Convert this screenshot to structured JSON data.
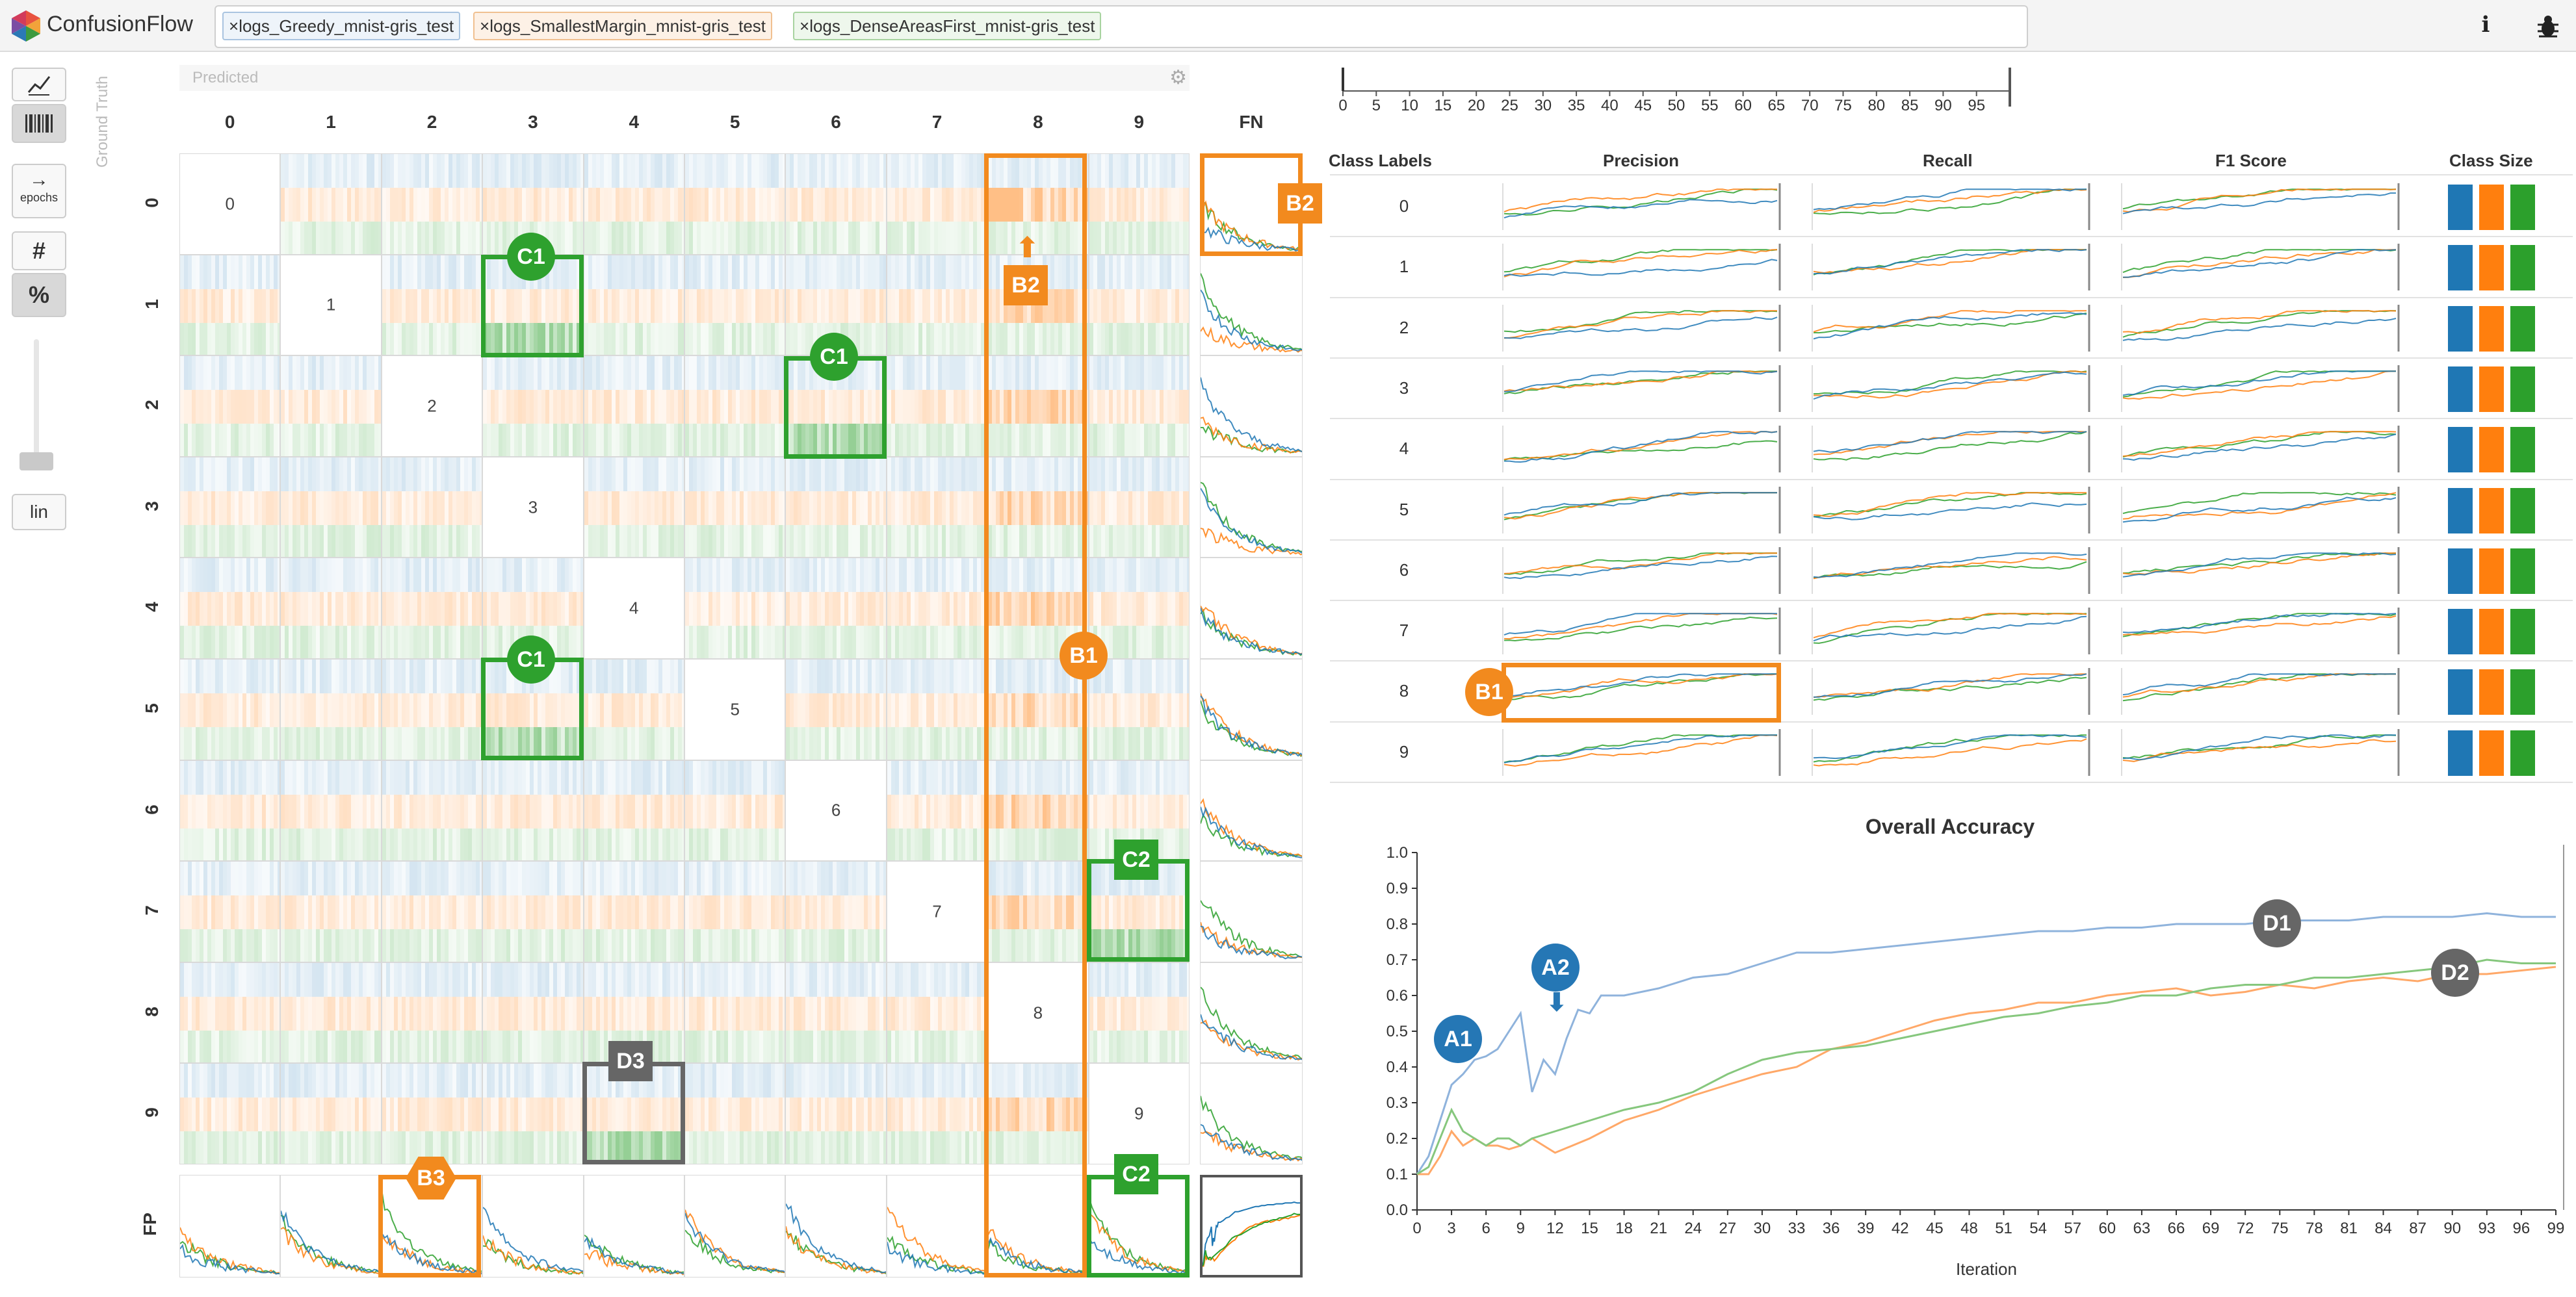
{
  "app": {
    "title": "ConfusionFlow"
  },
  "runs": [
    {
      "label": "logs_Greedy_mnist-gris_test",
      "color": "#1f77b4",
      "bg": "#dde9f5"
    },
    {
      "label": "logs_SmallestMargin_mnist-gris_test",
      "color": "#ff7f0e",
      "bg": "#fbe6d2"
    },
    {
      "label": "logs_DenseAreasFirst_mnist-gris_test",
      "color": "#2ca02c",
      "bg": "#dff0dc"
    }
  ],
  "remove_glyph": "×",
  "header_icons": [
    "info-icon",
    "bug-icon"
  ],
  "toolbar": {
    "view_line_icon": "line-chart-icon",
    "view_bar_icon": "barcode-icon",
    "epochs_label": "epochs",
    "count_label": "#",
    "percent_label": "%",
    "scale_label": "lin"
  },
  "matrix": {
    "predicted_label": "Predicted",
    "ground_truth_label": "Ground Truth",
    "fn_label": "FN",
    "fp_label": "FP",
    "classes": [
      "0",
      "1",
      "2",
      "3",
      "4",
      "5",
      "6",
      "7",
      "8",
      "9"
    ]
  },
  "timeline": {
    "ticks": [
      "0",
      "5",
      "10",
      "15",
      "20",
      "25",
      "30",
      "35",
      "40",
      "45",
      "50",
      "55",
      "60",
      "65",
      "70",
      "75",
      "80",
      "85",
      "90",
      "95"
    ]
  },
  "metrics_table": {
    "headers": {
      "class_labels": "Class Labels",
      "precision": "Precision",
      "recall": "Recall",
      "f1": "F1 Score",
      "class_size": "Class Size"
    },
    "rows": [
      "0",
      "1",
      "2",
      "3",
      "4",
      "5",
      "6",
      "7",
      "8",
      "9"
    ]
  },
  "accuracy_chart": {
    "title": "Overall Accuracy",
    "xlabel": "Iteration",
    "yticks": [
      "0.0",
      "0.1",
      "0.2",
      "0.3",
      "0.4",
      "0.5",
      "0.6",
      "0.7",
      "0.8",
      "0.9",
      "1.0"
    ],
    "xticks": [
      "0",
      "3",
      "6",
      "9",
      "12",
      "15",
      "18",
      "21",
      "24",
      "27",
      "30",
      "33",
      "36",
      "39",
      "42",
      "45",
      "48",
      "51",
      "54",
      "57",
      "60",
      "63",
      "66",
      "69",
      "72",
      "75",
      "78",
      "81",
      "84",
      "87",
      "90",
      "93",
      "96",
      "99"
    ]
  },
  "chart_data": {
    "type": "line",
    "title": "Overall Accuracy",
    "xlabel": "Iteration",
    "ylabel": "",
    "ylim": [
      0,
      1
    ],
    "xlim": [
      0,
      99
    ],
    "series": [
      {
        "x": [
          0,
          1,
          2,
          3,
          4,
          5,
          6,
          7,
          8,
          9,
          10,
          11,
          12,
          13,
          14,
          15,
          16,
          18,
          21,
          24,
          27,
          30,
          33,
          36,
          39,
          42,
          45,
          48,
          51,
          54,
          57,
          60,
          63,
          66,
          69,
          72,
          75,
          78,
          81,
          84,
          87,
          90,
          93,
          96,
          99
        ],
        "y": [
          0.1,
          0.15,
          0.25,
          0.35,
          0.38,
          0.42,
          0.43,
          0.45,
          0.5,
          0.55,
          0.33,
          0.42,
          0.38,
          0.48,
          0.56,
          0.55,
          0.6,
          0.6,
          0.62,
          0.65,
          0.66,
          0.69,
          0.72,
          0.72,
          0.73,
          0.74,
          0.75,
          0.76,
          0.77,
          0.78,
          0.78,
          0.79,
          0.79,
          0.8,
          0.8,
          0.8,
          0.81,
          0.81,
          0.81,
          0.82,
          0.82,
          0.82,
          0.83,
          0.82,
          0.82
        ]
      },
      {
        "x": [
          0,
          1,
          2,
          3,
          4,
          5,
          6,
          7,
          8,
          9,
          10,
          12,
          15,
          18,
          21,
          24,
          27,
          30,
          33,
          36,
          39,
          42,
          45,
          48,
          51,
          54,
          57,
          60,
          63,
          66,
          69,
          72,
          75,
          78,
          81,
          84,
          87,
          90,
          93,
          96,
          99
        ],
        "y": [
          0.1,
          0.1,
          0.15,
          0.22,
          0.18,
          0.2,
          0.18,
          0.18,
          0.17,
          0.18,
          0.2,
          0.16,
          0.2,
          0.25,
          0.28,
          0.32,
          0.35,
          0.38,
          0.4,
          0.45,
          0.47,
          0.5,
          0.53,
          0.55,
          0.56,
          0.58,
          0.58,
          0.6,
          0.61,
          0.62,
          0.6,
          0.61,
          0.63,
          0.62,
          0.64,
          0.65,
          0.64,
          0.66,
          0.66,
          0.67,
          0.68
        ]
      },
      {
        "x": [
          0,
          1,
          2,
          3,
          4,
          5,
          6,
          7,
          8,
          9,
          10,
          12,
          15,
          18,
          21,
          24,
          27,
          30,
          33,
          36,
          39,
          42,
          45,
          48,
          51,
          54,
          57,
          60,
          63,
          66,
          69,
          72,
          75,
          78,
          81,
          84,
          87,
          90,
          93,
          96,
          99
        ],
        "y": [
          0.1,
          0.12,
          0.2,
          0.28,
          0.22,
          0.2,
          0.18,
          0.2,
          0.2,
          0.18,
          0.2,
          0.22,
          0.25,
          0.28,
          0.3,
          0.33,
          0.38,
          0.42,
          0.44,
          0.45,
          0.46,
          0.48,
          0.5,
          0.52,
          0.54,
          0.55,
          0.57,
          0.58,
          0.6,
          0.6,
          0.62,
          0.63,
          0.63,
          0.65,
          0.65,
          0.66,
          0.67,
          0.68,
          0.7,
          0.69,
          0.69
        ]
      }
    ]
  },
  "annotations": {
    "A1": "A1",
    "A2": "A2",
    "B1": "B1",
    "B2": "B2",
    "B3": "B3",
    "C1": "C1",
    "C2": "C2",
    "D1": "D1",
    "D2": "D2",
    "D3": "D3"
  }
}
